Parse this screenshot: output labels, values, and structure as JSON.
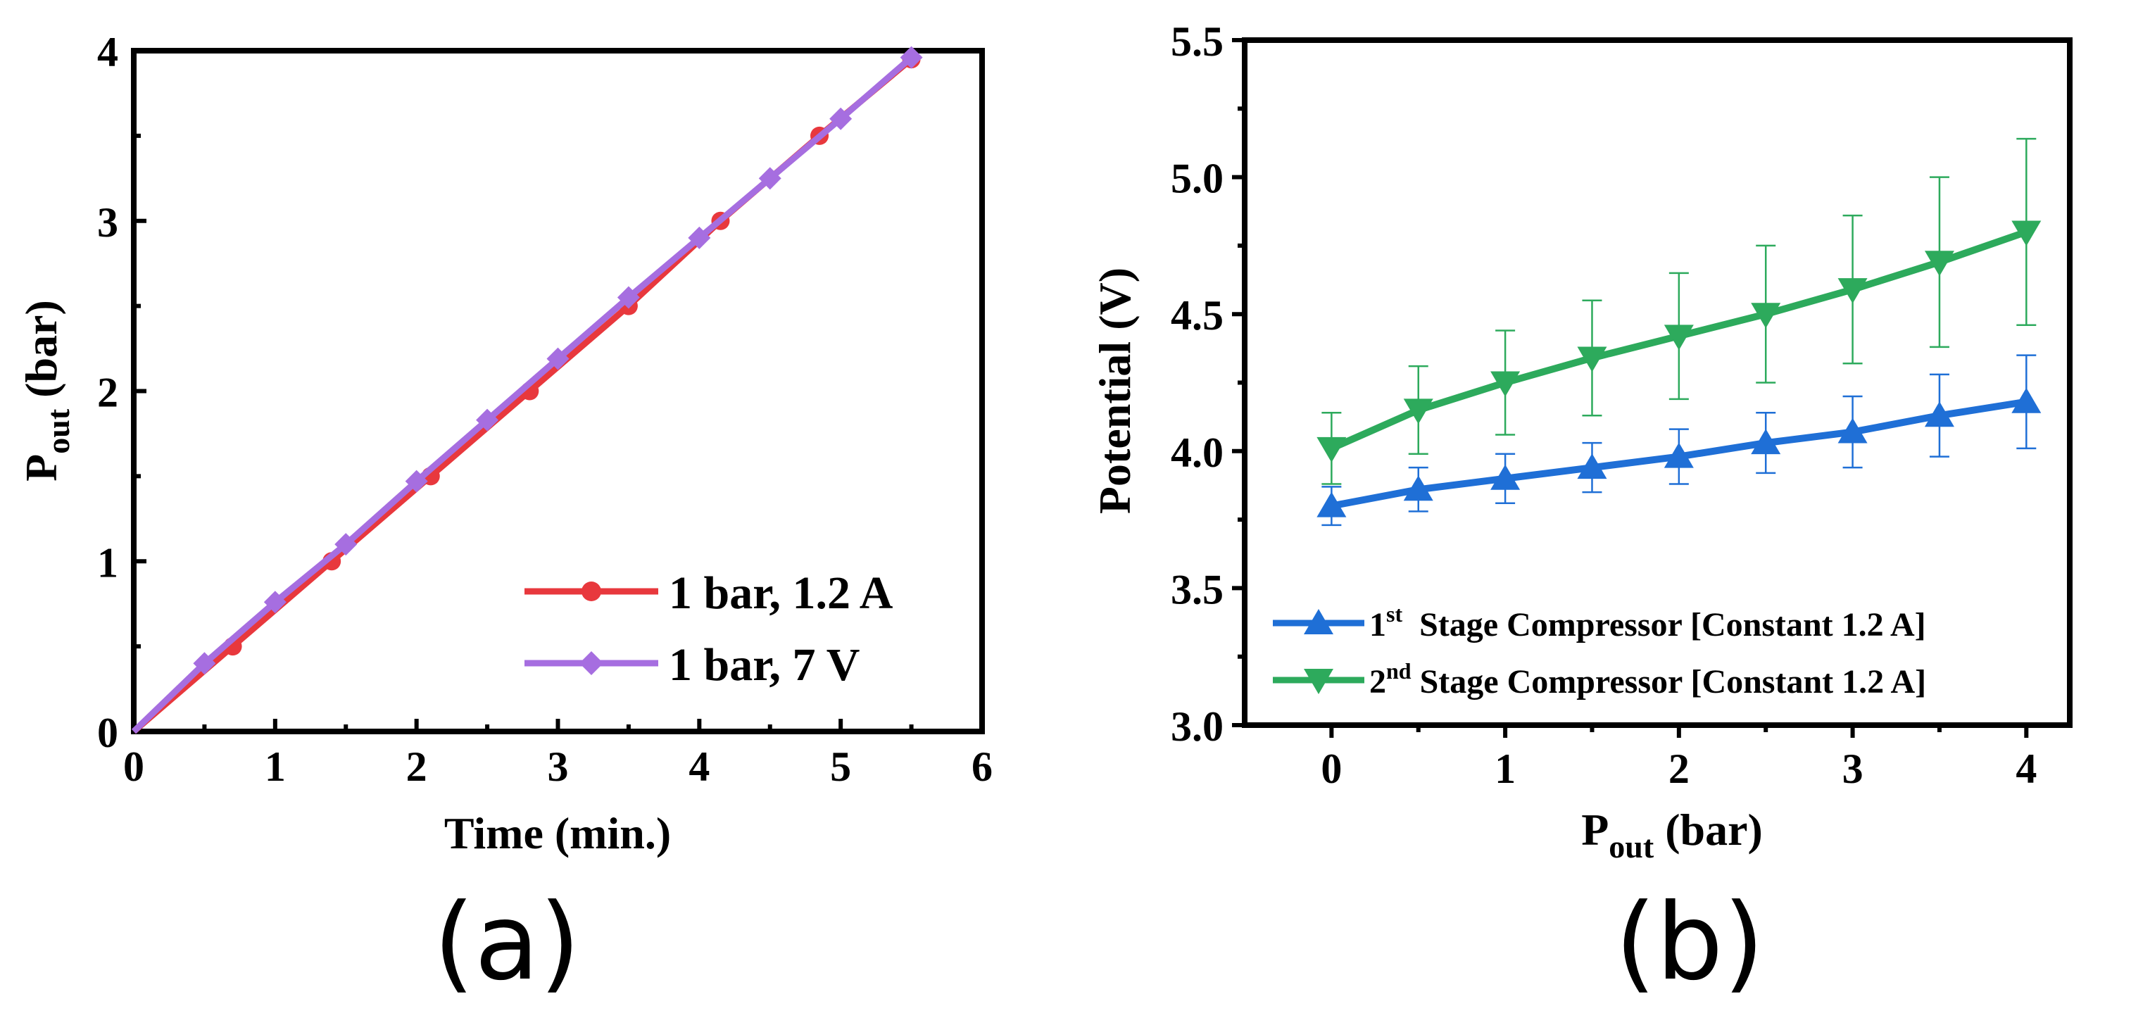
{
  "chart_data": [
    {
      "type": "line",
      "panel_label": "(a)",
      "xlabel": "Time (min.)",
      "ylabel_main": "P",
      "ylabel_sub": "out",
      "ylabel_rest": " (bar)",
      "xlim": [
        0,
        6
      ],
      "ylim": [
        0,
        4
      ],
      "xticks": [
        "0",
        "1",
        "2",
        "3",
        "4",
        "5",
        "6"
      ],
      "yticks": [
        "0",
        "1",
        "2",
        "3",
        "4"
      ],
      "legend_position": "bottom-right",
      "series": [
        {
          "name": "1 bar, 1.2 A",
          "color": "#e8383d",
          "marker": "circle",
          "x": [
            0,
            0.7,
            1.4,
            2.1,
            2.8,
            3.5,
            4.15,
            4.85,
            5.5
          ],
          "y": [
            0,
            0.5,
            1.0,
            1.5,
            2.0,
            2.5,
            3.0,
            3.5,
            3.95
          ]
        },
        {
          "name": "1 bar, 7 V",
          "color": "#a66ee0",
          "marker": "diamond",
          "x": [
            0,
            0.5,
            1.0,
            1.5,
            2.0,
            2.5,
            3.0,
            3.5,
            4.0,
            4.5,
            5.0,
            5.5
          ],
          "y": [
            0,
            0.4,
            0.76,
            1.1,
            1.47,
            1.83,
            2.19,
            2.55,
            2.9,
            3.25,
            3.6,
            3.96
          ]
        }
      ]
    },
    {
      "type": "line",
      "panel_label": "(b)",
      "xlabel_main": "P",
      "xlabel_sub": "out",
      "xlabel_rest": " (bar)",
      "ylabel": "Potential (V)",
      "xlim": [
        -0.5,
        4.25
      ],
      "ylim": [
        3.0,
        5.5
      ],
      "xticks": [
        "0",
        "1",
        "2",
        "3",
        "4"
      ],
      "yticks": [
        "3.0",
        "3.5",
        "4.0",
        "4.5",
        "5.0",
        "5.5"
      ],
      "legend_position": "bottom-left",
      "series": [
        {
          "name_sup": "st",
          "name_num": "1",
          "name_rest": "  Stage Compressor [Constant 1.2 A]",
          "color": "#1f6fd6",
          "marker": "triangle-up",
          "x": [
            0,
            0.5,
            1,
            1.5,
            2,
            2.5,
            3,
            3.5,
            4
          ],
          "y": [
            3.8,
            3.86,
            3.9,
            3.94,
            3.98,
            4.03,
            4.07,
            4.13,
            4.18
          ],
          "err": [
            0.07,
            0.08,
            0.09,
            0.09,
            0.1,
            0.11,
            0.13,
            0.15,
            0.17
          ]
        },
        {
          "name_sup": "nd",
          "name_num": "2",
          "name_rest": " Stage Compressor [Constant 1.2 A]",
          "color": "#2daa5c",
          "marker": "triangle-down",
          "x": [
            0,
            0.5,
            1,
            1.5,
            2,
            2.5,
            3,
            3.5,
            4
          ],
          "y": [
            4.01,
            4.15,
            4.25,
            4.34,
            4.42,
            4.5,
            4.59,
            4.69,
            4.8
          ],
          "err": [
            0.13,
            0.16,
            0.19,
            0.21,
            0.23,
            0.25,
            0.27,
            0.31,
            0.34
          ]
        }
      ]
    }
  ]
}
